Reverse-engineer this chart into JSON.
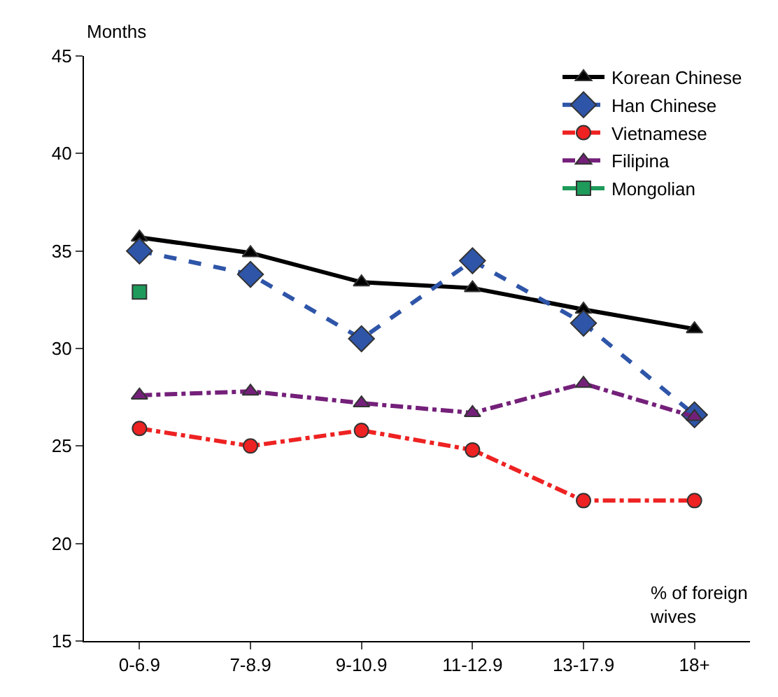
{
  "chart_data": {
    "type": "line",
    "ylabel": "Months",
    "annotations": [
      "% of foreign wives"
    ],
    "categories": [
      "0-6.9",
      "7-8.9",
      "9-10.9",
      "11-12.9",
      "13-17.9",
      "18+"
    ],
    "series": [
      {
        "name": "Korean Chinese",
        "color": "#000000",
        "marker": "triangle",
        "line_style": "solid",
        "values": [
          35.7,
          34.9,
          33.4,
          33.1,
          32.0,
          31.0
        ]
      },
      {
        "name": "Han Chinese",
        "color": "#2e55a8",
        "marker": "diamond",
        "line_style": "dashed",
        "values": [
          35.0,
          33.8,
          30.5,
          34.5,
          31.3,
          26.6
        ]
      },
      {
        "name": "Vietnamese",
        "color": "#ee2222",
        "marker": "circle",
        "line_style": "dashdot",
        "values": [
          25.9,
          25.0,
          25.8,
          24.8,
          22.2,
          22.2
        ]
      },
      {
        "name": "Filipina",
        "color": "#74207a",
        "marker": "triangle",
        "line_style": "dashdot",
        "values": [
          27.6,
          27.8,
          27.2,
          26.7,
          28.2,
          26.5
        ]
      },
      {
        "name": "Mongolian",
        "color": "#1e9a5a",
        "marker": "square",
        "line_style": "solid",
        "values": [
          32.9,
          null,
          null,
          null,
          null,
          null
        ]
      }
    ],
    "ylim": [
      15,
      45
    ],
    "yticks": [
      15,
      20,
      25,
      30,
      35,
      40,
      45
    ],
    "grid": false,
    "legend": "top right"
  }
}
